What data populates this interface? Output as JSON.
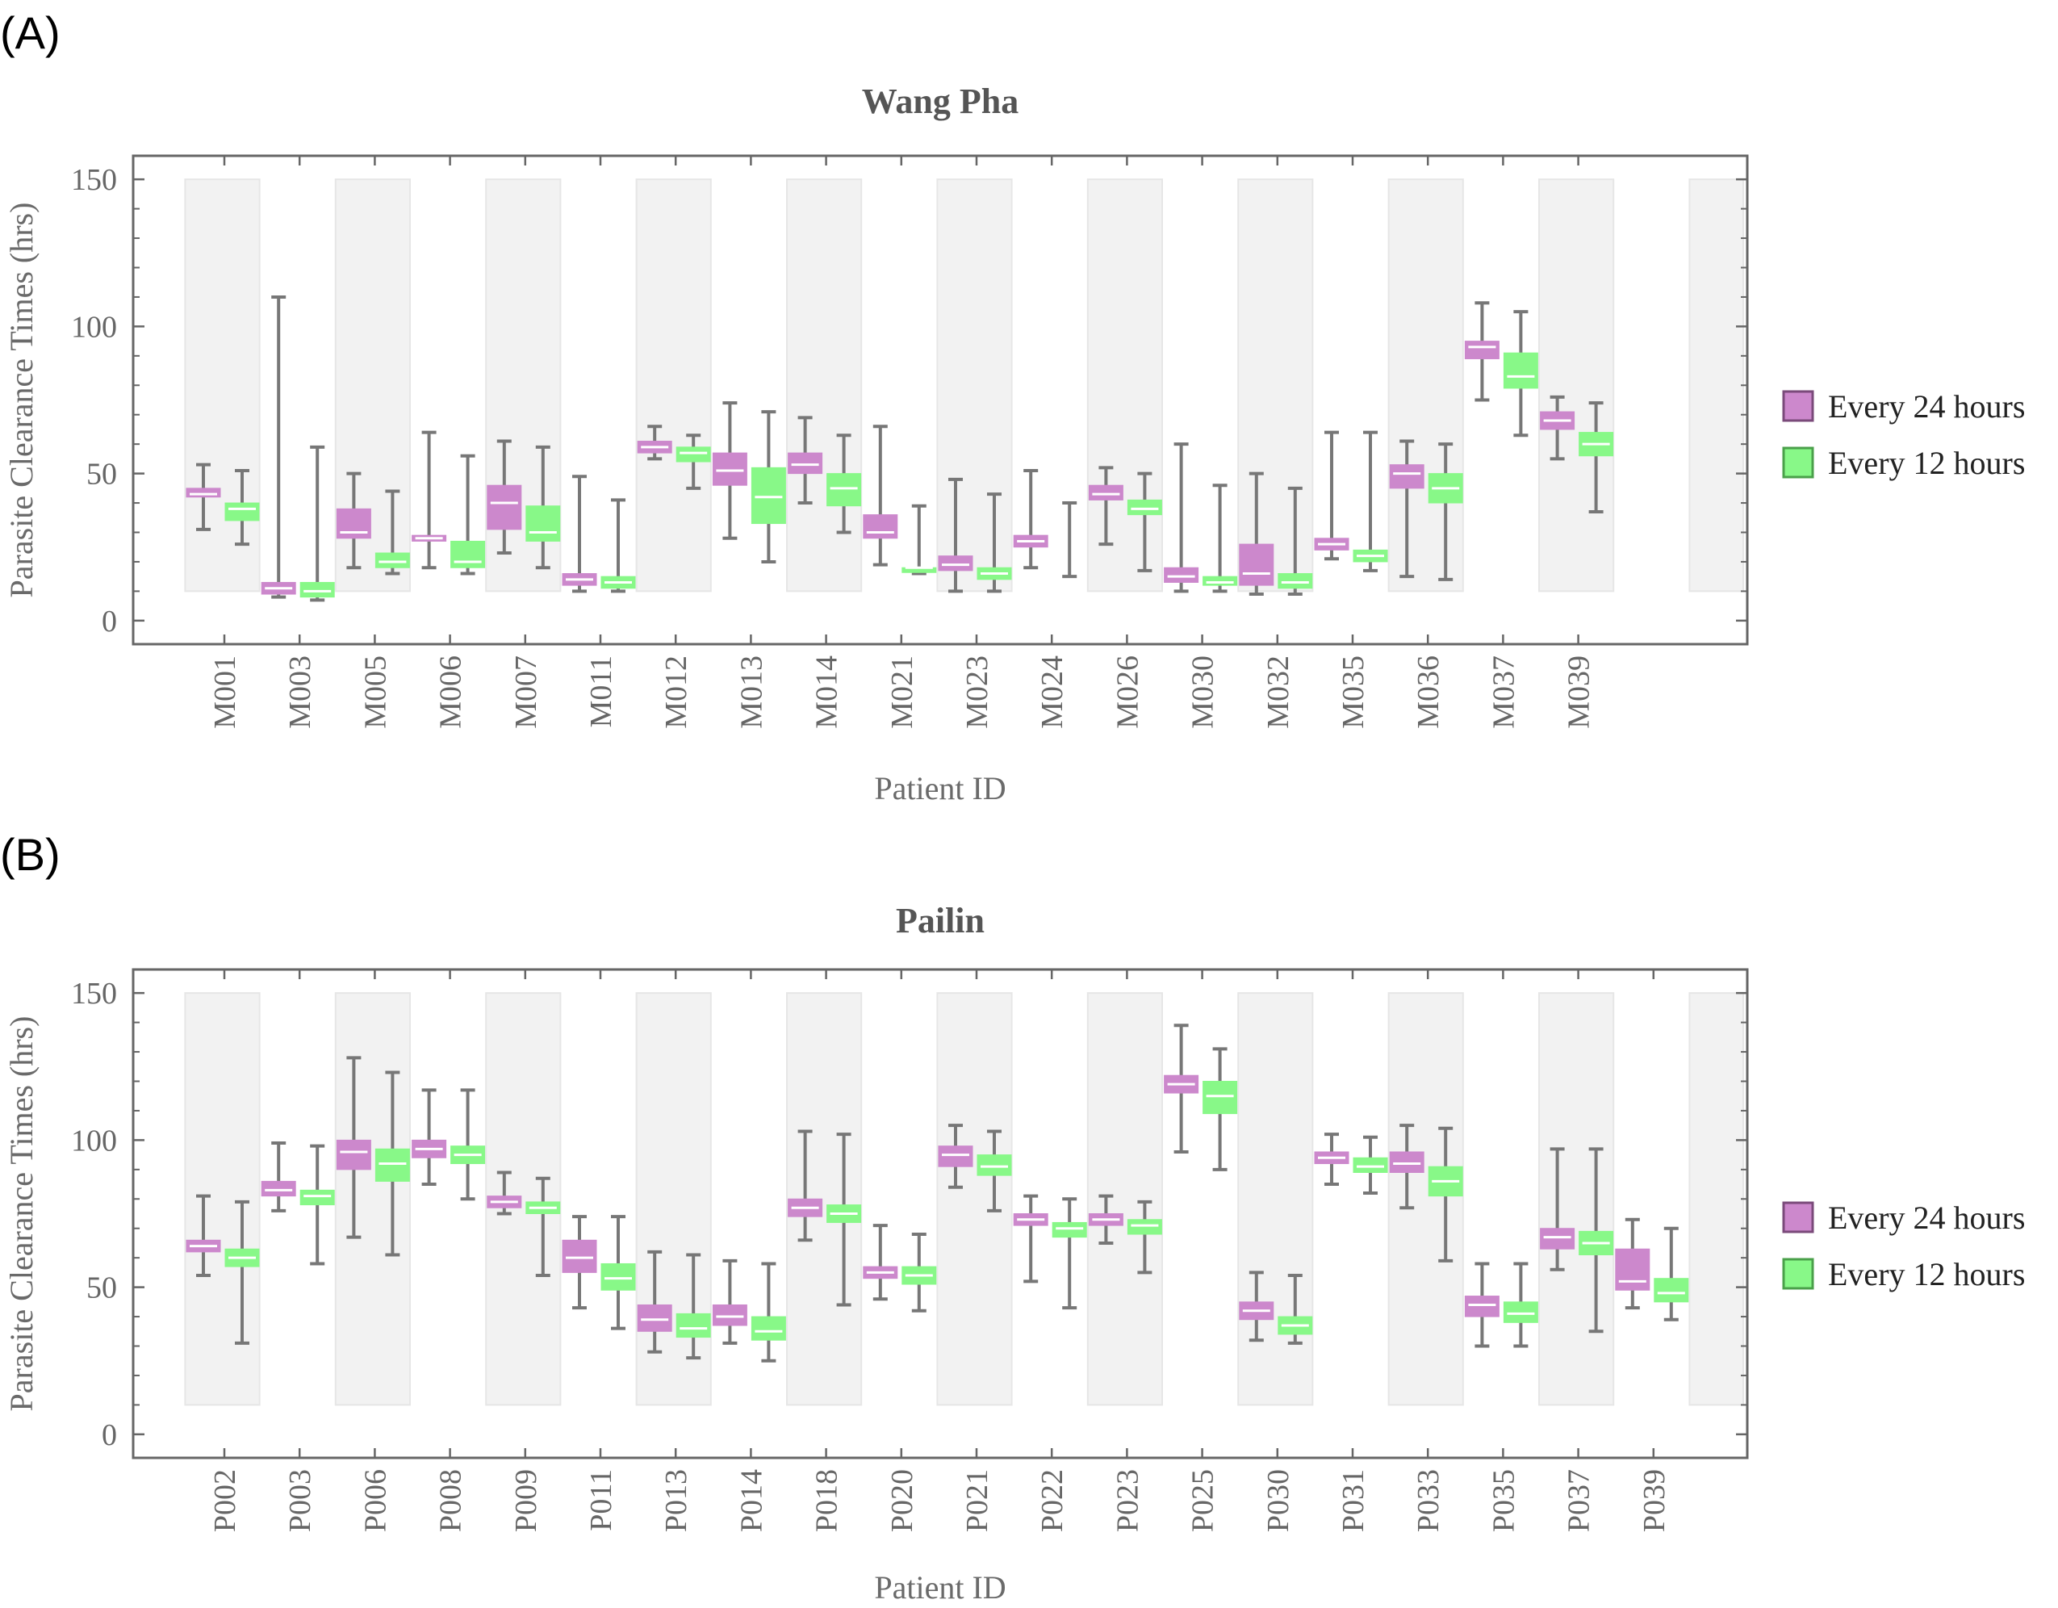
{
  "chart_data": [
    {
      "panel_label": "(A)",
      "type": "box",
      "title": "Wang Pha",
      "xlabel": "Patient ID",
      "ylabel": "Parasite Clearance Times (hrs)",
      "ylim": [
        -8,
        158
      ],
      "yticks": [
        0,
        50,
        100,
        150
      ],
      "alternating_background_bands": true,
      "legend_position": "right",
      "colors": {
        "Every 24 hours": "#cc88cc",
        "Every 12 hours": "#88f888"
      },
      "series_names": [
        "Every 24 hours",
        "Every 12 hours"
      ],
      "categories": [
        "M001",
        "M003",
        "M005",
        "M006",
        "M007",
        "M011",
        "M012",
        "M013",
        "M014",
        "M021",
        "M023",
        "M024",
        "M026",
        "M030",
        "M032",
        "M035",
        "M036",
        "M037",
        "M039"
      ],
      "boxes_24h": [
        {
          "min": 31,
          "q1": 42,
          "median": 43,
          "q3": 45,
          "max": 53
        },
        {
          "min": 8,
          "q1": 9,
          "median": 11,
          "q3": 13,
          "max": 110
        },
        {
          "min": 18,
          "q1": 28,
          "median": 30,
          "q3": 38,
          "max": 50
        },
        {
          "min": 18,
          "q1": 27,
          "median": 28,
          "q3": 29,
          "max": 64
        },
        {
          "min": 23,
          "q1": 31,
          "median": 40,
          "q3": 46,
          "max": 61
        },
        {
          "min": 10,
          "q1": 12,
          "median": 14,
          "q3": 16,
          "max": 49
        },
        {
          "min": 55,
          "q1": 57,
          "median": 59,
          "q3": 61,
          "max": 66
        },
        {
          "min": 28,
          "q1": 46,
          "median": 51,
          "q3": 57,
          "max": 74
        },
        {
          "min": 40,
          "q1": 50,
          "median": 53,
          "q3": 57,
          "max": 69
        },
        {
          "min": 19,
          "q1": 28,
          "median": 30,
          "q3": 36,
          "max": 66
        },
        {
          "min": 10,
          "q1": 17,
          "median": 19,
          "q3": 22,
          "max": 48
        },
        {
          "min": 18,
          "q1": 25,
          "median": 27,
          "q3": 29,
          "max": 51
        },
        {
          "min": 26,
          "q1": 41,
          "median": 43,
          "q3": 46,
          "max": 52
        },
        {
          "min": 10,
          "q1": 13,
          "median": 15,
          "q3": 18,
          "max": 60
        },
        {
          "min": 9,
          "q1": 12,
          "median": 16,
          "q3": 26,
          "max": 50
        },
        {
          "min": 21,
          "q1": 24,
          "median": 26,
          "q3": 28,
          "max": 64
        },
        {
          "min": 15,
          "q1": 45,
          "median": 50,
          "q3": 53,
          "max": 61
        },
        {
          "min": 75,
          "q1": 89,
          "median": 93,
          "q3": 95,
          "max": 108
        },
        {
          "min": 55,
          "q1": 65,
          "median": 68,
          "q3": 71,
          "max": 76
        }
      ],
      "boxes_12h": [
        {
          "min": 26,
          "q1": 34,
          "median": 38,
          "q3": 40,
          "max": 51
        },
        {
          "min": 7,
          "q1": 8,
          "median": 10,
          "q3": 13,
          "max": 59
        },
        {
          "min": 16,
          "q1": 18,
          "median": 20,
          "q3": 23,
          "max": 44
        },
        {
          "min": 16,
          "q1": 18,
          "median": 20,
          "q3": 27,
          "max": 56
        },
        {
          "min": 18,
          "q1": 27,
          "median": 30,
          "q3": 39,
          "max": 59
        },
        {
          "min": 10,
          "q1": 11,
          "median": 13,
          "q3": 15,
          "max": 41
        },
        {
          "min": 45,
          "q1": 54,
          "median": 57,
          "q3": 59,
          "max": 63
        },
        {
          "min": 20,
          "q1": 33,
          "median": 42,
          "q3": 52,
          "max": 71
        },
        {
          "min": 30,
          "q1": 39,
          "median": 45,
          "q3": 50,
          "max": 63
        },
        {
          "min": 16,
          "q1": 17,
          "median": 18,
          "q3": 18,
          "max": 39
        },
        {
          "min": 10,
          "q1": 14,
          "median": 16,
          "q3": 18,
          "max": 43
        },
        {
          "min": 15,
          "q1": null,
          "median": null,
          "q3": null,
          "max": 40
        },
        {
          "min": 17,
          "q1": 36,
          "median": 38,
          "q3": 41,
          "max": 50
        },
        {
          "min": 10,
          "q1": 12,
          "median": 13,
          "q3": 15,
          "max": 46
        },
        {
          "min": 9,
          "q1": 11,
          "median": 13,
          "q3": 16,
          "max": 45
        },
        {
          "min": 17,
          "q1": 20,
          "median": 22,
          "q3": 24,
          "max": 64
        },
        {
          "min": 14,
          "q1": 40,
          "median": 45,
          "q3": 50,
          "max": 60
        },
        {
          "min": 63,
          "q1": 79,
          "median": 83,
          "q3": 91,
          "max": 105
        },
        {
          "min": 37,
          "q1": 56,
          "median": 60,
          "q3": 64,
          "max": 74
        }
      ]
    },
    {
      "panel_label": "(B)",
      "type": "box",
      "title": "Pailin",
      "xlabel": "Patient ID",
      "ylabel": "Parasite Clearance Times (hrs)",
      "ylim": [
        -8,
        158
      ],
      "yticks": [
        0,
        50,
        100,
        150
      ],
      "alternating_background_bands": true,
      "legend_position": "right",
      "colors": {
        "Every 24 hours": "#cc88cc",
        "Every 12 hours": "#88f888"
      },
      "series_names": [
        "Every 24 hours",
        "Every 12 hours"
      ],
      "categories": [
        "P002",
        "P003",
        "P006",
        "P008",
        "P009",
        "P011",
        "P013",
        "P014",
        "P018",
        "P020",
        "P021",
        "P022",
        "P023",
        "P025",
        "P030",
        "P031",
        "P033",
        "P035",
        "P037",
        "P039"
      ],
      "boxes_24h": [
        {
          "min": 54,
          "q1": 62,
          "median": 64,
          "q3": 66,
          "max": 81
        },
        {
          "min": 76,
          "q1": 81,
          "median": 83,
          "q3": 86,
          "max": 99
        },
        {
          "min": 67,
          "q1": 90,
          "median": 96,
          "q3": 100,
          "max": 128
        },
        {
          "min": 85,
          "q1": 94,
          "median": 97,
          "q3": 100,
          "max": 117
        },
        {
          "min": 75,
          "q1": 77,
          "median": 79,
          "q3": 81,
          "max": 89
        },
        {
          "min": 43,
          "q1": 55,
          "median": 60,
          "q3": 66,
          "max": 74
        },
        {
          "min": 28,
          "q1": 35,
          "median": 39,
          "q3": 44,
          "max": 62
        },
        {
          "min": 31,
          "q1": 37,
          "median": 40,
          "q3": 44,
          "max": 59
        },
        {
          "min": 66,
          "q1": 74,
          "median": 77,
          "q3": 80,
          "max": 103
        },
        {
          "min": 46,
          "q1": 53,
          "median": 55,
          "q3": 57,
          "max": 71
        },
        {
          "min": 84,
          "q1": 91,
          "median": 95,
          "q3": 98,
          "max": 105
        },
        {
          "min": 52,
          "q1": 71,
          "median": 73,
          "q3": 75,
          "max": 81
        },
        {
          "min": 65,
          "q1": 71,
          "median": 73,
          "q3": 75,
          "max": 81
        },
        {
          "min": 96,
          "q1": 116,
          "median": 119,
          "q3": 122,
          "max": 139
        },
        {
          "min": 32,
          "q1": 39,
          "median": 42,
          "q3": 45,
          "max": 55
        },
        {
          "min": 85,
          "q1": 92,
          "median": 94,
          "q3": 96,
          "max": 102
        },
        {
          "min": 77,
          "q1": 89,
          "median": 92,
          "q3": 96,
          "max": 105
        },
        {
          "min": 30,
          "q1": 40,
          "median": 44,
          "q3": 47,
          "max": 58
        },
        {
          "min": 56,
          "q1": 63,
          "median": 67,
          "q3": 70,
          "max": 97
        },
        {
          "min": 43,
          "q1": 49,
          "median": 52,
          "q3": 63,
          "max": 73
        }
      ],
      "boxes_12h": [
        {
          "min": 31,
          "q1": 57,
          "median": 60,
          "q3": 63,
          "max": 79
        },
        {
          "min": 58,
          "q1": 78,
          "median": 81,
          "q3": 83,
          "max": 98
        },
        {
          "min": 61,
          "q1": 86,
          "median": 92,
          "q3": 97,
          "max": 123
        },
        {
          "min": 80,
          "q1": 92,
          "median": 95,
          "q3": 98,
          "max": 117
        },
        {
          "min": 54,
          "q1": 75,
          "median": 77,
          "q3": 79,
          "max": 87
        },
        {
          "min": 36,
          "q1": 49,
          "median": 53,
          "q3": 58,
          "max": 74
        },
        {
          "min": 26,
          "q1": 33,
          "median": 36,
          "q3": 41,
          "max": 61
        },
        {
          "min": 25,
          "q1": 32,
          "median": 35,
          "q3": 40,
          "max": 58
        },
        {
          "min": 44,
          "q1": 72,
          "median": 75,
          "q3": 78,
          "max": 102
        },
        {
          "min": 42,
          "q1": 51,
          "median": 54,
          "q3": 57,
          "max": 68
        },
        {
          "min": 76,
          "q1": 88,
          "median": 91,
          "q3": 95,
          "max": 103
        },
        {
          "min": 43,
          "q1": 67,
          "median": 70,
          "q3": 72,
          "max": 80
        },
        {
          "min": 55,
          "q1": 68,
          "median": 71,
          "q3": 73,
          "max": 79
        },
        {
          "min": 90,
          "q1": 109,
          "median": 115,
          "q3": 120,
          "max": 131
        },
        {
          "min": 31,
          "q1": 34,
          "median": 37,
          "q3": 40,
          "max": 54
        },
        {
          "min": 82,
          "q1": 89,
          "median": 91,
          "q3": 94,
          "max": 101
        },
        {
          "min": 59,
          "q1": 81,
          "median": 86,
          "q3": 91,
          "max": 104
        },
        {
          "min": 30,
          "q1": 38,
          "median": 41,
          "q3": 45,
          "max": 58
        },
        {
          "min": 35,
          "q1": 61,
          "median": 65,
          "q3": 69,
          "max": 97
        },
        {
          "min": 39,
          "q1": 45,
          "median": 48,
          "q3": 53,
          "max": 70
        }
      ]
    }
  ]
}
